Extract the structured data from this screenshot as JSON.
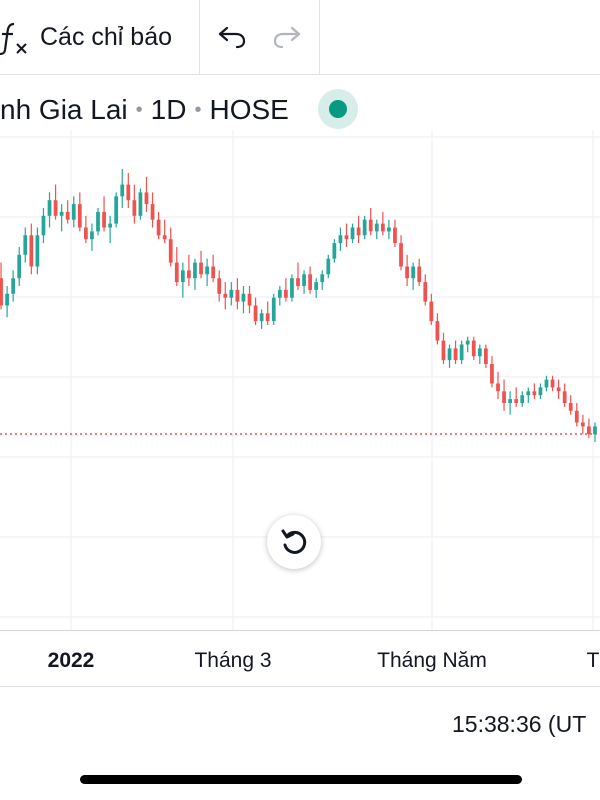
{
  "toolbar": {
    "indicators_label": "Các chỉ báo",
    "icons": [
      "fx-icon",
      "undo-icon",
      "redo-icon"
    ]
  },
  "legend": {
    "symbol_name": "nh Gia Lai",
    "interval": "1D",
    "exchange": "HOSE",
    "status_color": "#089981"
  },
  "colors": {
    "up": "#26a69a",
    "down": "#ef5350",
    "grid": "#f0f3fa",
    "price_line": "#ef5350"
  },
  "chart_data": {
    "type": "candlestick",
    "x_axis_ticks": [
      {
        "label": "2022",
        "bold": true
      },
      {
        "label": "Tháng 3",
        "bold": false
      },
      {
        "label": "Tháng Năm",
        "bold": false
      },
      {
        "label": "T",
        "bold": false
      }
    ],
    "current_price_line": true,
    "grid": true,
    "candles": [
      {
        "o": 0.62,
        "h": 0.66,
        "l": 0.54,
        "c": 0.55
      },
      {
        "o": 0.55,
        "h": 0.6,
        "l": 0.52,
        "c": 0.58
      },
      {
        "o": 0.58,
        "h": 0.64,
        "l": 0.56,
        "c": 0.62
      },
      {
        "o": 0.62,
        "h": 0.7,
        "l": 0.6,
        "c": 0.68
      },
      {
        "o": 0.68,
        "h": 0.75,
        "l": 0.66,
        "c": 0.73
      },
      {
        "o": 0.73,
        "h": 0.76,
        "l": 0.63,
        "c": 0.65
      },
      {
        "o": 0.65,
        "h": 0.75,
        "l": 0.63,
        "c": 0.73
      },
      {
        "o": 0.73,
        "h": 0.8,
        "l": 0.71,
        "c": 0.78
      },
      {
        "o": 0.78,
        "h": 0.84,
        "l": 0.75,
        "c": 0.82
      },
      {
        "o": 0.82,
        "h": 0.86,
        "l": 0.77,
        "c": 0.78
      },
      {
        "o": 0.78,
        "h": 0.81,
        "l": 0.74,
        "c": 0.79
      },
      {
        "o": 0.79,
        "h": 0.82,
        "l": 0.76,
        "c": 0.77
      },
      {
        "o": 0.77,
        "h": 0.83,
        "l": 0.75,
        "c": 0.81
      },
      {
        "o": 0.81,
        "h": 0.84,
        "l": 0.74,
        "c": 0.75
      },
      {
        "o": 0.75,
        "h": 0.78,
        "l": 0.71,
        "c": 0.72
      },
      {
        "o": 0.72,
        "h": 0.76,
        "l": 0.69,
        "c": 0.74
      },
      {
        "o": 0.74,
        "h": 0.8,
        "l": 0.73,
        "c": 0.79
      },
      {
        "o": 0.79,
        "h": 0.83,
        "l": 0.74,
        "c": 0.75
      },
      {
        "o": 0.75,
        "h": 0.78,
        "l": 0.71,
        "c": 0.76
      },
      {
        "o": 0.76,
        "h": 0.84,
        "l": 0.75,
        "c": 0.83
      },
      {
        "o": 0.83,
        "h": 0.9,
        "l": 0.8,
        "c": 0.86
      },
      {
        "o": 0.86,
        "h": 0.89,
        "l": 0.8,
        "c": 0.82
      },
      {
        "o": 0.82,
        "h": 0.86,
        "l": 0.76,
        "c": 0.78
      },
      {
        "o": 0.78,
        "h": 0.85,
        "l": 0.77,
        "c": 0.84
      },
      {
        "o": 0.84,
        "h": 0.88,
        "l": 0.79,
        "c": 0.81
      },
      {
        "o": 0.81,
        "h": 0.84,
        "l": 0.75,
        "c": 0.77
      },
      {
        "o": 0.77,
        "h": 0.79,
        "l": 0.72,
        "c": 0.73
      },
      {
        "o": 0.73,
        "h": 0.77,
        "l": 0.71,
        "c": 0.72
      },
      {
        "o": 0.72,
        "h": 0.75,
        "l": 0.65,
        "c": 0.66
      },
      {
        "o": 0.66,
        "h": 0.7,
        "l": 0.6,
        "c": 0.61
      },
      {
        "o": 0.61,
        "h": 0.66,
        "l": 0.57,
        "c": 0.64
      },
      {
        "o": 0.64,
        "h": 0.68,
        "l": 0.6,
        "c": 0.62
      },
      {
        "o": 0.62,
        "h": 0.67,
        "l": 0.59,
        "c": 0.66
      },
      {
        "o": 0.66,
        "h": 0.69,
        "l": 0.62,
        "c": 0.63
      },
      {
        "o": 0.63,
        "h": 0.67,
        "l": 0.6,
        "c": 0.65
      },
      {
        "o": 0.65,
        "h": 0.68,
        "l": 0.61,
        "c": 0.62
      },
      {
        "o": 0.62,
        "h": 0.64,
        "l": 0.56,
        "c": 0.58
      },
      {
        "o": 0.58,
        "h": 0.61,
        "l": 0.54,
        "c": 0.57
      },
      {
        "o": 0.57,
        "h": 0.61,
        "l": 0.55,
        "c": 0.59
      },
      {
        "o": 0.59,
        "h": 0.62,
        "l": 0.54,
        "c": 0.56
      },
      {
        "o": 0.56,
        "h": 0.6,
        "l": 0.53,
        "c": 0.58
      },
      {
        "o": 0.58,
        "h": 0.6,
        "l": 0.53,
        "c": 0.55
      },
      {
        "o": 0.55,
        "h": 0.57,
        "l": 0.5,
        "c": 0.51
      },
      {
        "o": 0.51,
        "h": 0.54,
        "l": 0.49,
        "c": 0.53
      },
      {
        "o": 0.53,
        "h": 0.56,
        "l": 0.5,
        "c": 0.51
      },
      {
        "o": 0.51,
        "h": 0.58,
        "l": 0.5,
        "c": 0.57
      },
      {
        "o": 0.57,
        "h": 0.6,
        "l": 0.55,
        "c": 0.59
      },
      {
        "o": 0.59,
        "h": 0.62,
        "l": 0.56,
        "c": 0.57
      },
      {
        "o": 0.57,
        "h": 0.63,
        "l": 0.56,
        "c": 0.62
      },
      {
        "o": 0.62,
        "h": 0.66,
        "l": 0.59,
        "c": 0.6
      },
      {
        "o": 0.6,
        "h": 0.64,
        "l": 0.58,
        "c": 0.63
      },
      {
        "o": 0.63,
        "h": 0.65,
        "l": 0.58,
        "c": 0.59
      },
      {
        "o": 0.59,
        "h": 0.62,
        "l": 0.57,
        "c": 0.61
      },
      {
        "o": 0.61,
        "h": 0.64,
        "l": 0.59,
        "c": 0.63
      },
      {
        "o": 0.63,
        "h": 0.68,
        "l": 0.62,
        "c": 0.67
      },
      {
        "o": 0.67,
        "h": 0.72,
        "l": 0.66,
        "c": 0.71
      },
      {
        "o": 0.71,
        "h": 0.75,
        "l": 0.69,
        "c": 0.73
      },
      {
        "o": 0.73,
        "h": 0.76,
        "l": 0.7,
        "c": 0.72
      },
      {
        "o": 0.72,
        "h": 0.76,
        "l": 0.71,
        "c": 0.75
      },
      {
        "o": 0.75,
        "h": 0.78,
        "l": 0.71,
        "c": 0.73
      },
      {
        "o": 0.73,
        "h": 0.78,
        "l": 0.72,
        "c": 0.77
      },
      {
        "o": 0.77,
        "h": 0.8,
        "l": 0.73,
        "c": 0.74
      },
      {
        "o": 0.74,
        "h": 0.77,
        "l": 0.72,
        "c": 0.76
      },
      {
        "o": 0.76,
        "h": 0.79,
        "l": 0.73,
        "c": 0.74
      },
      {
        "o": 0.74,
        "h": 0.77,
        "l": 0.72,
        "c": 0.75
      },
      {
        "o": 0.75,
        "h": 0.77,
        "l": 0.7,
        "c": 0.71
      },
      {
        "o": 0.71,
        "h": 0.73,
        "l": 0.64,
        "c": 0.65
      },
      {
        "o": 0.65,
        "h": 0.68,
        "l": 0.6,
        "c": 0.62
      },
      {
        "o": 0.62,
        "h": 0.66,
        "l": 0.59,
        "c": 0.65
      },
      {
        "o": 0.65,
        "h": 0.67,
        "l": 0.6,
        "c": 0.61
      },
      {
        "o": 0.61,
        "h": 0.63,
        "l": 0.55,
        "c": 0.56
      },
      {
        "o": 0.56,
        "h": 0.58,
        "l": 0.5,
        "c": 0.51
      },
      {
        "o": 0.51,
        "h": 0.53,
        "l": 0.45,
        "c": 0.46
      },
      {
        "o": 0.46,
        "h": 0.48,
        "l": 0.4,
        "c": 0.41
      },
      {
        "o": 0.41,
        "h": 0.45,
        "l": 0.39,
        "c": 0.44
      },
      {
        "o": 0.44,
        "h": 0.46,
        "l": 0.4,
        "c": 0.41
      },
      {
        "o": 0.41,
        "h": 0.46,
        "l": 0.4,
        "c": 0.45
      },
      {
        "o": 0.45,
        "h": 0.47,
        "l": 0.43,
        "c": 0.46
      },
      {
        "o": 0.46,
        "h": 0.47,
        "l": 0.41,
        "c": 0.42
      },
      {
        "o": 0.42,
        "h": 0.45,
        "l": 0.4,
        "c": 0.44
      },
      {
        "o": 0.44,
        "h": 0.45,
        "l": 0.39,
        "c": 0.4
      },
      {
        "o": 0.4,
        "h": 0.42,
        "l": 0.34,
        "c": 0.35
      },
      {
        "o": 0.35,
        "h": 0.38,
        "l": 0.31,
        "c": 0.33
      },
      {
        "o": 0.33,
        "h": 0.36,
        "l": 0.28,
        "c": 0.3
      },
      {
        "o": 0.3,
        "h": 0.33,
        "l": 0.27,
        "c": 0.31
      },
      {
        "o": 0.31,
        "h": 0.34,
        "l": 0.29,
        "c": 0.3
      },
      {
        "o": 0.3,
        "h": 0.33,
        "l": 0.29,
        "c": 0.32
      },
      {
        "o": 0.32,
        "h": 0.34,
        "l": 0.3,
        "c": 0.33
      },
      {
        "o": 0.33,
        "h": 0.35,
        "l": 0.31,
        "c": 0.32
      },
      {
        "o": 0.32,
        "h": 0.35,
        "l": 0.31,
        "c": 0.34
      },
      {
        "o": 0.34,
        "h": 0.37,
        "l": 0.33,
        "c": 0.36
      },
      {
        "o": 0.36,
        "h": 0.37,
        "l": 0.33,
        "c": 0.34
      },
      {
        "o": 0.34,
        "h": 0.36,
        "l": 0.31,
        "c": 0.33
      },
      {
        "o": 0.33,
        "h": 0.35,
        "l": 0.29,
        "c": 0.3
      },
      {
        "o": 0.3,
        "h": 0.32,
        "l": 0.27,
        "c": 0.28
      },
      {
        "o": 0.28,
        "h": 0.3,
        "l": 0.24,
        "c": 0.25
      },
      {
        "o": 0.25,
        "h": 0.27,
        "l": 0.22,
        "c": 0.24
      },
      {
        "o": 0.24,
        "h": 0.26,
        "l": 0.21,
        "c": 0.22
      },
      {
        "o": 0.22,
        "h": 0.25,
        "l": 0.2,
        "c": 0.24
      }
    ]
  },
  "controls": {
    "reset_icon": "rotate-left-icon"
  },
  "status_bar": {
    "time": "15:38:36 (UT"
  }
}
